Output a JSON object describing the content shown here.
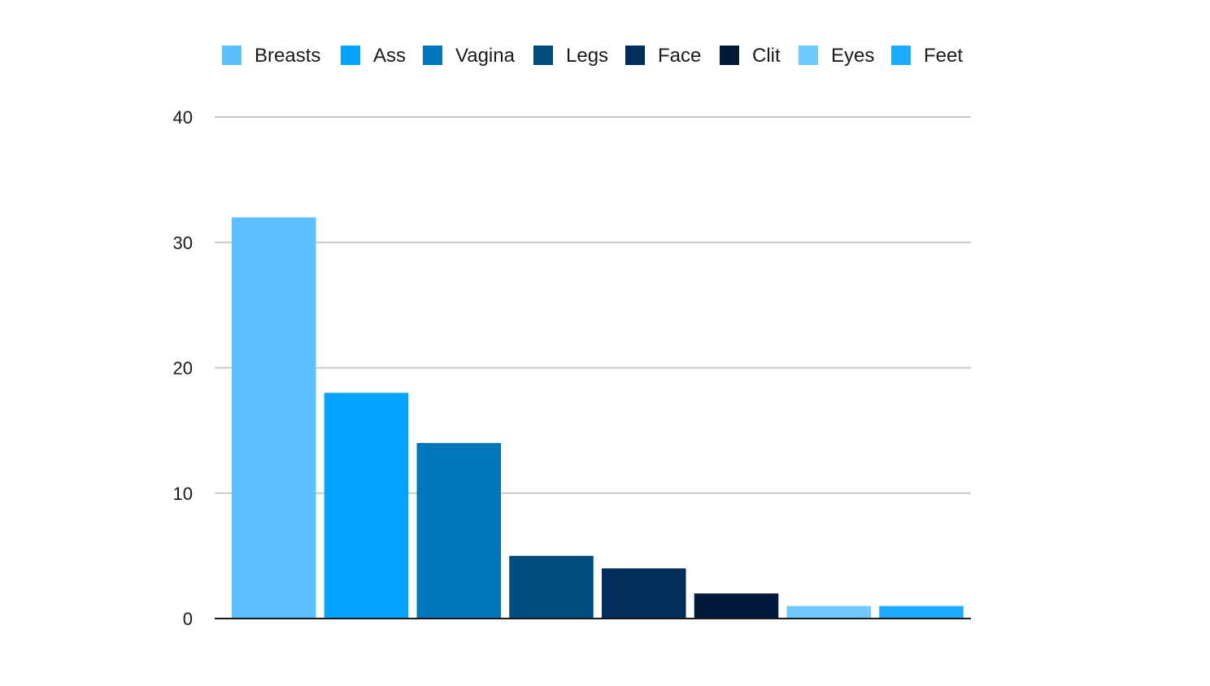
{
  "chart_data": {
    "type": "bar",
    "title": "",
    "xlabel": "",
    "ylabel": "",
    "ylim": [
      0,
      40
    ],
    "yticks": [
      "0",
      "10",
      "20",
      "30",
      "40"
    ],
    "grid": true,
    "legend_position": "top",
    "categories": [
      "Breasts",
      "Ass",
      "Vagina",
      "Legs",
      "Face",
      "Clit",
      "Eyes",
      "Feet"
    ],
    "values": [
      32,
      18,
      14,
      5,
      4,
      2,
      1,
      1
    ],
    "colors": [
      "#5ac0ff",
      "#03a2ff",
      "#0076bd",
      "#004d7e",
      "#012d5b",
      "#00183a",
      "#6ecaff",
      "#1aaaff"
    ]
  }
}
